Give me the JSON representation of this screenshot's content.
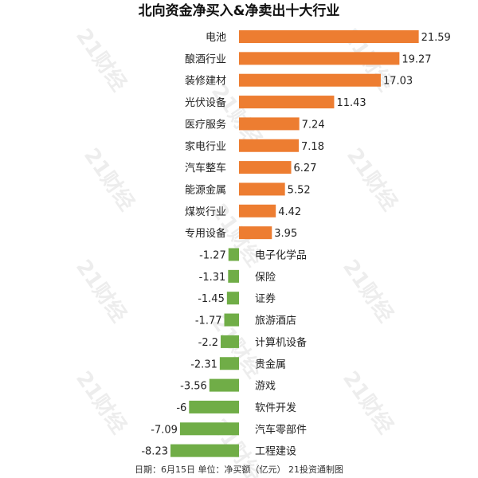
{
  "chart_data": {
    "type": "bar",
    "orientation": "horizontal",
    "title": "北向资金净买入&净卖出十大行业",
    "categories": [
      "电池",
      "酿酒行业",
      "装修建材",
      "光伏设备",
      "医疗服务",
      "家电行业",
      "汽车整车",
      "能源金属",
      "煤炭行业",
      "专用设备",
      "电子化学品",
      "保险",
      "证券",
      "旅游酒店",
      "计算机设备",
      "贵金属",
      "游戏",
      "软件开发",
      "汽车零部件",
      "工程建设"
    ],
    "values": [
      21.59,
      19.27,
      17.03,
      11.43,
      7.24,
      7.18,
      6.27,
      5.52,
      4.42,
      3.95,
      -1.27,
      -1.31,
      -1.45,
      -1.77,
      -2.2,
      -2.31,
      -3.56,
      -6,
      -7.09,
      -8.23
    ],
    "value_labels": [
      "21.59",
      "19.27",
      "17.03",
      "11.43",
      "7.24",
      "7.18",
      "6.27",
      "5.52",
      "4.42",
      "3.95",
      "-1.27",
      "-1.31",
      "-1.45",
      "-1.77",
      "-2.2",
      "-2.31",
      "-3.56",
      "-6",
      "-7.09",
      "-8.23"
    ],
    "colors": {
      "positive": "#ED7D31",
      "negative": "#70AD47"
    },
    "grid": false,
    "legend": "none",
    "footnote": "日期：6月15日 单位：净买额（亿元） 21投资通制图"
  },
  "watermark": {
    "text": "21财经",
    "color": "#000000"
  }
}
